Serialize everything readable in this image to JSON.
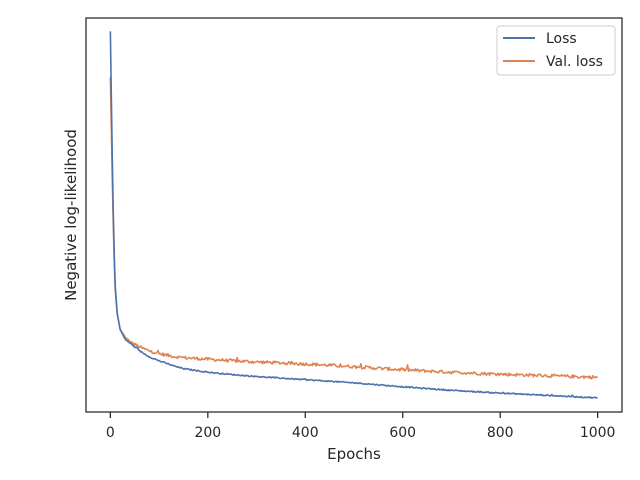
{
  "chart_data": {
    "type": "line",
    "xlabel": "Epochs",
    "ylabel": "Negative log-likelihood",
    "xlim": [
      -50,
      1050
    ],
    "ylim": [
      0,
      1
    ],
    "y_axis_values_not_printed": true,
    "xticks": [
      0,
      200,
      400,
      600,
      800,
      1000
    ],
    "xtick_labels": [
      "0",
      "200",
      "400",
      "600",
      "800",
      "1000"
    ],
    "legend_position": "top-right",
    "grid": false,
    "series": [
      {
        "name": "Loss",
        "color": "#4c72b0",
        "noise": 0.0015,
        "x": [
          0,
          2,
          5,
          8,
          10,
          14,
          20,
          30,
          40,
          60,
          80,
          100,
          130,
          150,
          200,
          250,
          300,
          400,
          500,
          600,
          700,
          800,
          900,
          1000
        ],
        "y": [
          0.966,
          0.8,
          0.56,
          0.4,
          0.32,
          0.25,
          0.21,
          0.185,
          0.175,
          0.155,
          0.14,
          0.13,
          0.117,
          0.11,
          0.101,
          0.095,
          0.09,
          0.082,
          0.074,
          0.064,
          0.055,
          0.048,
          0.042,
          0.036
        ]
      },
      {
        "name": "Val. loss",
        "color": "#dd8452",
        "noise": 0.004,
        "x": [
          0,
          2,
          5,
          8,
          10,
          14,
          20,
          30,
          40,
          60,
          80,
          100,
          130,
          150,
          200,
          250,
          300,
          400,
          500,
          600,
          700,
          800,
          900,
          1000
        ],
        "y": [
          0.85,
          0.72,
          0.52,
          0.38,
          0.31,
          0.25,
          0.21,
          0.19,
          0.178,
          0.165,
          0.155,
          0.148,
          0.141,
          0.138,
          0.134,
          0.13,
          0.127,
          0.122,
          0.115,
          0.107,
          0.101,
          0.096,
          0.092,
          0.088
        ]
      }
    ]
  }
}
